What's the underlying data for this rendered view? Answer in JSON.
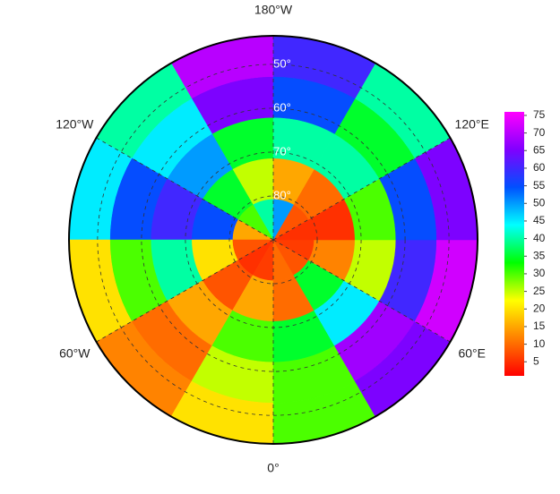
{
  "chart_data": {
    "type": "polar-grid",
    "latlim": [
      43.5,
      90
    ],
    "lonlim": [
      -180,
      180
    ],
    "lat_ticks": [
      {
        "value": 50,
        "label": "50°"
      },
      {
        "value": 60,
        "label": "60°"
      },
      {
        "value": 70,
        "label": "70°"
      },
      {
        "value": 80,
        "label": "80°"
      }
    ],
    "lon_ticks": [
      {
        "value": -180,
        "label": "180°W"
      },
      {
        "value": -120,
        "label": "120°W"
      },
      {
        "value": -60,
        "label": "60°W"
      },
      {
        "value": 0,
        "label": "0°"
      },
      {
        "value": 60,
        "label": "60°E"
      },
      {
        "value": 120,
        "label": "120°E"
      }
    ],
    "values": [
      [
        40,
        30,
        15,
        8,
        5,
        6,
        10,
        8,
        6,
        5,
        8,
        50
      ],
      [
        25,
        35,
        55,
        20,
        8,
        15,
        10,
        35,
        12,
        5,
        10,
        15
      ],
      [
        35,
        50,
        60,
        40,
        15,
        30,
        35,
        45,
        25,
        30,
        40,
        40
      ],
      [
        65,
        45,
        55,
        30,
        10,
        25,
        30,
        68,
        60,
        55,
        35,
        55
      ],
      [
        70,
        40,
        45,
        20,
        12,
        20,
        30,
        65,
        72,
        65,
        40,
        60
      ]
    ],
    "colormap": [
      "#ff0000",
      "#ff8000",
      "#ffff00",
      "#00ff00",
      "#00ffff",
      "#0050ff",
      "#8000ff",
      "#ff00ff"
    ],
    "clim": [
      1,
      76
    ],
    "cticks": [
      5,
      10,
      15,
      20,
      25,
      30,
      35,
      40,
      45,
      50,
      55,
      60,
      65,
      70,
      75
    ]
  }
}
